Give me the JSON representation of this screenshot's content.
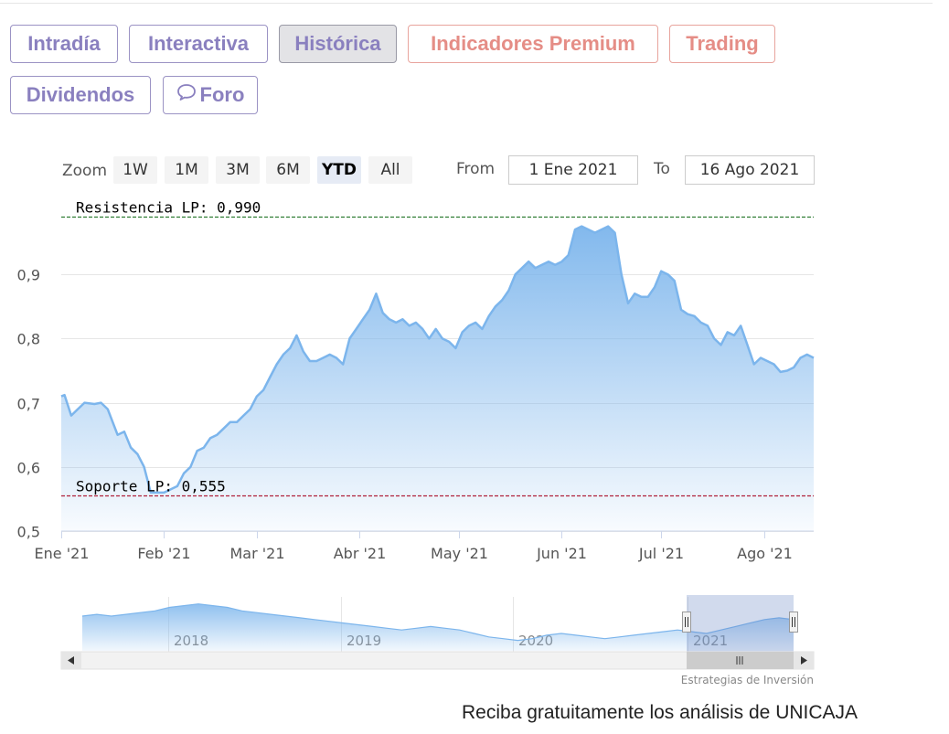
{
  "nav": {
    "tabs": [
      {
        "label": "Intradía",
        "active": false,
        "premium": false
      },
      {
        "label": "Interactiva",
        "active": false,
        "premium": false
      },
      {
        "label": "Histórica",
        "active": true,
        "premium": false
      },
      {
        "label": "Indicadores Premium",
        "active": false,
        "premium": true
      },
      {
        "label": "Trading",
        "active": false,
        "premium": true
      },
      {
        "label": "Dividendos",
        "active": false,
        "premium": false
      },
      {
        "label": "Foro",
        "active": false,
        "premium": false,
        "icon": "speech-bubble-icon"
      }
    ]
  },
  "range_selector": {
    "zoom_label": "Zoom",
    "buttons": [
      "1W",
      "1M",
      "3M",
      "6M",
      "YTD",
      "All"
    ],
    "selected": "YTD",
    "from_label": "From",
    "from_value": "1 Ene 2021",
    "to_label": "To",
    "to_value": "16 Ago 2021"
  },
  "chart_data": {
    "type": "area",
    "ylim": [
      0.5,
      1.0
    ],
    "yticks": [
      "0,5",
      "0,6",
      "0,7",
      "0,8",
      "0,9"
    ],
    "ytick_values": [
      0.5,
      0.6,
      0.7,
      0.8,
      0.9
    ],
    "xlim": [
      "2021-01-01",
      "2021-08-16"
    ],
    "xticks": [
      {
        "label": "Ene '21",
        "date": "2021-01-01"
      },
      {
        "label": "Feb '21",
        "date": "2021-02-01"
      },
      {
        "label": "Mar '21",
        "date": "2021-03-01"
      },
      {
        "label": "Abr '21",
        "date": "2021-04-01"
      },
      {
        "label": "May '21",
        "date": "2021-05-01"
      },
      {
        "label": "Jun '21",
        "date": "2021-06-01"
      },
      {
        "label": "Jul '21",
        "date": "2021-07-01"
      },
      {
        "label": "Ago '21",
        "date": "2021-08-01"
      }
    ],
    "grid": true,
    "series": [
      {
        "color": "#7cb5ec",
        "points": [
          [
            "2021-01-01",
            0.71
          ],
          [
            "2021-01-02",
            0.712
          ],
          [
            "2021-01-04",
            0.68
          ],
          [
            "2021-01-06",
            0.69
          ],
          [
            "2021-01-08",
            0.7
          ],
          [
            "2021-01-11",
            0.698
          ],
          [
            "2021-01-13",
            0.7
          ],
          [
            "2021-01-15",
            0.69
          ],
          [
            "2021-01-18",
            0.65
          ],
          [
            "2021-01-20",
            0.655
          ],
          [
            "2021-01-22",
            0.63
          ],
          [
            "2021-01-24",
            0.62
          ],
          [
            "2021-01-26",
            0.6
          ],
          [
            "2021-01-28",
            0.56
          ],
          [
            "2021-01-30",
            0.56
          ],
          [
            "2021-02-01",
            0.56
          ],
          [
            "2021-02-03",
            0.565
          ],
          [
            "2021-02-05",
            0.57
          ],
          [
            "2021-02-07",
            0.59
          ],
          [
            "2021-02-09",
            0.6
          ],
          [
            "2021-02-11",
            0.625
          ],
          [
            "2021-02-13",
            0.63
          ],
          [
            "2021-02-15",
            0.645
          ],
          [
            "2021-02-17",
            0.65
          ],
          [
            "2021-02-19",
            0.66
          ],
          [
            "2021-02-21",
            0.67
          ],
          [
            "2021-02-23",
            0.67
          ],
          [
            "2021-02-25",
            0.68
          ],
          [
            "2021-02-27",
            0.69
          ],
          [
            "2021-03-01",
            0.71
          ],
          [
            "2021-03-03",
            0.72
          ],
          [
            "2021-03-05",
            0.74
          ],
          [
            "2021-03-07",
            0.76
          ],
          [
            "2021-03-09",
            0.775
          ],
          [
            "2021-03-11",
            0.785
          ],
          [
            "2021-03-13",
            0.805
          ],
          [
            "2021-03-15",
            0.78
          ],
          [
            "2021-03-17",
            0.765
          ],
          [
            "2021-03-19",
            0.765
          ],
          [
            "2021-03-21",
            0.77
          ],
          [
            "2021-03-23",
            0.775
          ],
          [
            "2021-03-25",
            0.77
          ],
          [
            "2021-03-27",
            0.76
          ],
          [
            "2021-03-29",
            0.8
          ],
          [
            "2021-03-31",
            0.815
          ],
          [
            "2021-04-02",
            0.83
          ],
          [
            "2021-04-04",
            0.845
          ],
          [
            "2021-04-06",
            0.87
          ],
          [
            "2021-04-08",
            0.84
          ],
          [
            "2021-04-10",
            0.83
          ],
          [
            "2021-04-12",
            0.825
          ],
          [
            "2021-04-14",
            0.83
          ],
          [
            "2021-04-16",
            0.82
          ],
          [
            "2021-04-18",
            0.825
          ],
          [
            "2021-04-20",
            0.815
          ],
          [
            "2021-04-22",
            0.8
          ],
          [
            "2021-04-24",
            0.815
          ],
          [
            "2021-04-26",
            0.8
          ],
          [
            "2021-04-28",
            0.795
          ],
          [
            "2021-04-30",
            0.785
          ],
          [
            "2021-05-02",
            0.81
          ],
          [
            "2021-05-04",
            0.82
          ],
          [
            "2021-05-06",
            0.825
          ],
          [
            "2021-05-08",
            0.815
          ],
          [
            "2021-05-10",
            0.835
          ],
          [
            "2021-05-12",
            0.85
          ],
          [
            "2021-05-14",
            0.86
          ],
          [
            "2021-05-16",
            0.875
          ],
          [
            "2021-05-18",
            0.9
          ],
          [
            "2021-05-20",
            0.91
          ],
          [
            "2021-05-22",
            0.92
          ],
          [
            "2021-05-24",
            0.91
          ],
          [
            "2021-05-26",
            0.915
          ],
          [
            "2021-05-28",
            0.92
          ],
          [
            "2021-05-30",
            0.915
          ],
          [
            "2021-06-01",
            0.92
          ],
          [
            "2021-06-03",
            0.93
          ],
          [
            "2021-06-05",
            0.97
          ],
          [
            "2021-06-07",
            0.975
          ],
          [
            "2021-06-09",
            0.97
          ],
          [
            "2021-06-11",
            0.965
          ],
          [
            "2021-06-13",
            0.97
          ],
          [
            "2021-06-15",
            0.975
          ],
          [
            "2021-06-17",
            0.965
          ],
          [
            "2021-06-19",
            0.9
          ],
          [
            "2021-06-21",
            0.855
          ],
          [
            "2021-06-23",
            0.87
          ],
          [
            "2021-06-25",
            0.865
          ],
          [
            "2021-06-27",
            0.865
          ],
          [
            "2021-06-29",
            0.88
          ],
          [
            "2021-07-01",
            0.905
          ],
          [
            "2021-07-03",
            0.9
          ],
          [
            "2021-07-05",
            0.89
          ],
          [
            "2021-07-07",
            0.845
          ],
          [
            "2021-07-09",
            0.838
          ],
          [
            "2021-07-11",
            0.835
          ],
          [
            "2021-07-13",
            0.825
          ],
          [
            "2021-07-15",
            0.82
          ],
          [
            "2021-07-17",
            0.8
          ],
          [
            "2021-07-19",
            0.79
          ],
          [
            "2021-07-21",
            0.81
          ],
          [
            "2021-07-23",
            0.805
          ],
          [
            "2021-07-25",
            0.82
          ],
          [
            "2021-07-27",
            0.79
          ],
          [
            "2021-07-29",
            0.76
          ],
          [
            "2021-07-31",
            0.77
          ],
          [
            "2021-08-02",
            0.765
          ],
          [
            "2021-08-04",
            0.76
          ],
          [
            "2021-08-06",
            0.748
          ],
          [
            "2021-08-08",
            0.75
          ],
          [
            "2021-08-10",
            0.755
          ],
          [
            "2021-08-12",
            0.77
          ],
          [
            "2021-08-14",
            0.775
          ],
          [
            "2021-08-16",
            0.77
          ]
        ]
      }
    ],
    "annotations": [
      {
        "text": "Resistencia LP: 0,990",
        "value": 0.99,
        "color": "#2e7d32"
      },
      {
        "text": "Soporte LP: 0,555",
        "value": 0.555,
        "color": "#b0203a"
      }
    ],
    "navigator": {
      "year_labels": [
        "2018",
        "2019",
        "2020",
        "2021"
      ],
      "values": [
        0.8,
        0.81,
        0.8,
        0.81,
        0.82,
        0.83,
        0.85,
        0.86,
        0.87,
        0.86,
        0.85,
        0.83,
        0.82,
        0.81,
        0.8,
        0.79,
        0.78,
        0.77,
        0.76,
        0.75,
        0.74,
        0.73,
        0.72,
        0.73,
        0.74,
        0.73,
        0.72,
        0.7,
        0.68,
        0.67,
        0.66,
        0.67,
        0.69,
        0.7,
        0.69,
        0.68,
        0.67,
        0.68,
        0.69,
        0.7,
        0.71,
        0.72,
        0.71,
        0.7,
        0.72,
        0.74,
        0.76,
        0.78,
        0.79,
        0.78
      ],
      "credit": "Estrategias de Inversión"
    }
  },
  "footer": {
    "cta": "Reciba gratuitamente los análisis de UNICAJA"
  }
}
